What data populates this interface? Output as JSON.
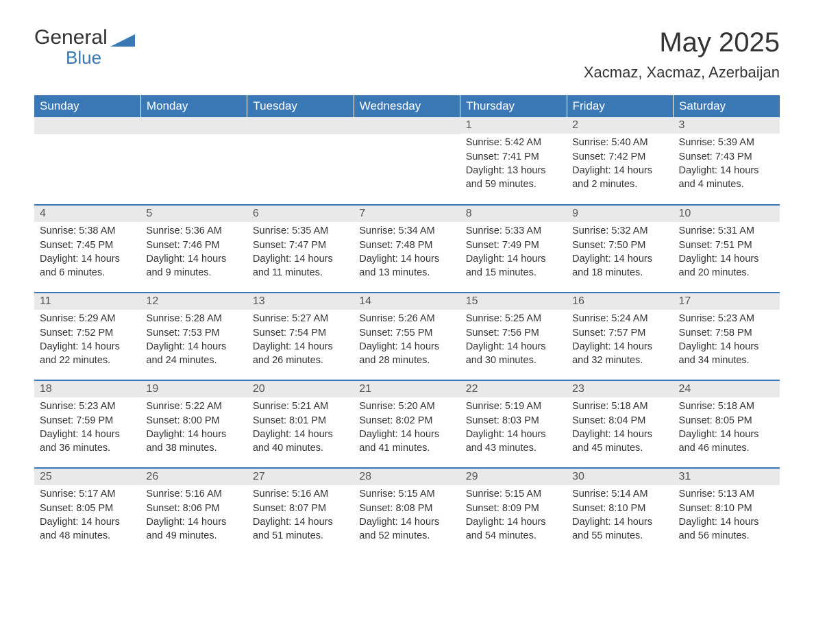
{
  "brand": {
    "word1": "General",
    "word2": "Blue",
    "logo_fill": "#3a78b5"
  },
  "title": "May 2025",
  "subtitle": "Xacmaz, Xacmaz, Azerbaijan",
  "colors": {
    "header_bg": "#3a78b5",
    "header_text": "#ffffff",
    "daynum_bg": "#e9e9e9",
    "daynum_text": "#555555",
    "body_text": "#333333",
    "row_divider": "#3a78b5",
    "page_bg": "#ffffff"
  },
  "typography": {
    "title_fontsize": 40,
    "subtitle_fontsize": 22,
    "weekday_fontsize": 17,
    "daynum_fontsize": 16,
    "body_fontsize": 14.5,
    "font_family": "Arial"
  },
  "weekdays": [
    "Sunday",
    "Monday",
    "Tuesday",
    "Wednesday",
    "Thursday",
    "Friday",
    "Saturday"
  ],
  "grid": {
    "columns": 7,
    "rows": 5,
    "leading_blanks": 4
  },
  "days": [
    {
      "n": "1",
      "sunrise": "5:42 AM",
      "sunset": "7:41 PM",
      "daylight": "13 hours and 59 minutes."
    },
    {
      "n": "2",
      "sunrise": "5:40 AM",
      "sunset": "7:42 PM",
      "daylight": "14 hours and 2 minutes."
    },
    {
      "n": "3",
      "sunrise": "5:39 AM",
      "sunset": "7:43 PM",
      "daylight": "14 hours and 4 minutes."
    },
    {
      "n": "4",
      "sunrise": "5:38 AM",
      "sunset": "7:45 PM",
      "daylight": "14 hours and 6 minutes."
    },
    {
      "n": "5",
      "sunrise": "5:36 AM",
      "sunset": "7:46 PM",
      "daylight": "14 hours and 9 minutes."
    },
    {
      "n": "6",
      "sunrise": "5:35 AM",
      "sunset": "7:47 PM",
      "daylight": "14 hours and 11 minutes."
    },
    {
      "n": "7",
      "sunrise": "5:34 AM",
      "sunset": "7:48 PM",
      "daylight": "14 hours and 13 minutes."
    },
    {
      "n": "8",
      "sunrise": "5:33 AM",
      "sunset": "7:49 PM",
      "daylight": "14 hours and 15 minutes."
    },
    {
      "n": "9",
      "sunrise": "5:32 AM",
      "sunset": "7:50 PM",
      "daylight": "14 hours and 18 minutes."
    },
    {
      "n": "10",
      "sunrise": "5:31 AM",
      "sunset": "7:51 PM",
      "daylight": "14 hours and 20 minutes."
    },
    {
      "n": "11",
      "sunrise": "5:29 AM",
      "sunset": "7:52 PM",
      "daylight": "14 hours and 22 minutes."
    },
    {
      "n": "12",
      "sunrise": "5:28 AM",
      "sunset": "7:53 PM",
      "daylight": "14 hours and 24 minutes."
    },
    {
      "n": "13",
      "sunrise": "5:27 AM",
      "sunset": "7:54 PM",
      "daylight": "14 hours and 26 minutes."
    },
    {
      "n": "14",
      "sunrise": "5:26 AM",
      "sunset": "7:55 PM",
      "daylight": "14 hours and 28 minutes."
    },
    {
      "n": "15",
      "sunrise": "5:25 AM",
      "sunset": "7:56 PM",
      "daylight": "14 hours and 30 minutes."
    },
    {
      "n": "16",
      "sunrise": "5:24 AM",
      "sunset": "7:57 PM",
      "daylight": "14 hours and 32 minutes."
    },
    {
      "n": "17",
      "sunrise": "5:23 AM",
      "sunset": "7:58 PM",
      "daylight": "14 hours and 34 minutes."
    },
    {
      "n": "18",
      "sunrise": "5:23 AM",
      "sunset": "7:59 PM",
      "daylight": "14 hours and 36 minutes."
    },
    {
      "n": "19",
      "sunrise": "5:22 AM",
      "sunset": "8:00 PM",
      "daylight": "14 hours and 38 minutes."
    },
    {
      "n": "20",
      "sunrise": "5:21 AM",
      "sunset": "8:01 PM",
      "daylight": "14 hours and 40 minutes."
    },
    {
      "n": "21",
      "sunrise": "5:20 AM",
      "sunset": "8:02 PM",
      "daylight": "14 hours and 41 minutes."
    },
    {
      "n": "22",
      "sunrise": "5:19 AM",
      "sunset": "8:03 PM",
      "daylight": "14 hours and 43 minutes."
    },
    {
      "n": "23",
      "sunrise": "5:18 AM",
      "sunset": "8:04 PM",
      "daylight": "14 hours and 45 minutes."
    },
    {
      "n": "24",
      "sunrise": "5:18 AM",
      "sunset": "8:05 PM",
      "daylight": "14 hours and 46 minutes."
    },
    {
      "n": "25",
      "sunrise": "5:17 AM",
      "sunset": "8:05 PM",
      "daylight": "14 hours and 48 minutes."
    },
    {
      "n": "26",
      "sunrise": "5:16 AM",
      "sunset": "8:06 PM",
      "daylight": "14 hours and 49 minutes."
    },
    {
      "n": "27",
      "sunrise": "5:16 AM",
      "sunset": "8:07 PM",
      "daylight": "14 hours and 51 minutes."
    },
    {
      "n": "28",
      "sunrise": "5:15 AM",
      "sunset": "8:08 PM",
      "daylight": "14 hours and 52 minutes."
    },
    {
      "n": "29",
      "sunrise": "5:15 AM",
      "sunset": "8:09 PM",
      "daylight": "14 hours and 54 minutes."
    },
    {
      "n": "30",
      "sunrise": "5:14 AM",
      "sunset": "8:10 PM",
      "daylight": "14 hours and 55 minutes."
    },
    {
      "n": "31",
      "sunrise": "5:13 AM",
      "sunset": "8:10 PM",
      "daylight": "14 hours and 56 minutes."
    }
  ],
  "labels": {
    "sunrise": "Sunrise:",
    "sunset": "Sunset:",
    "daylight": "Daylight:"
  }
}
